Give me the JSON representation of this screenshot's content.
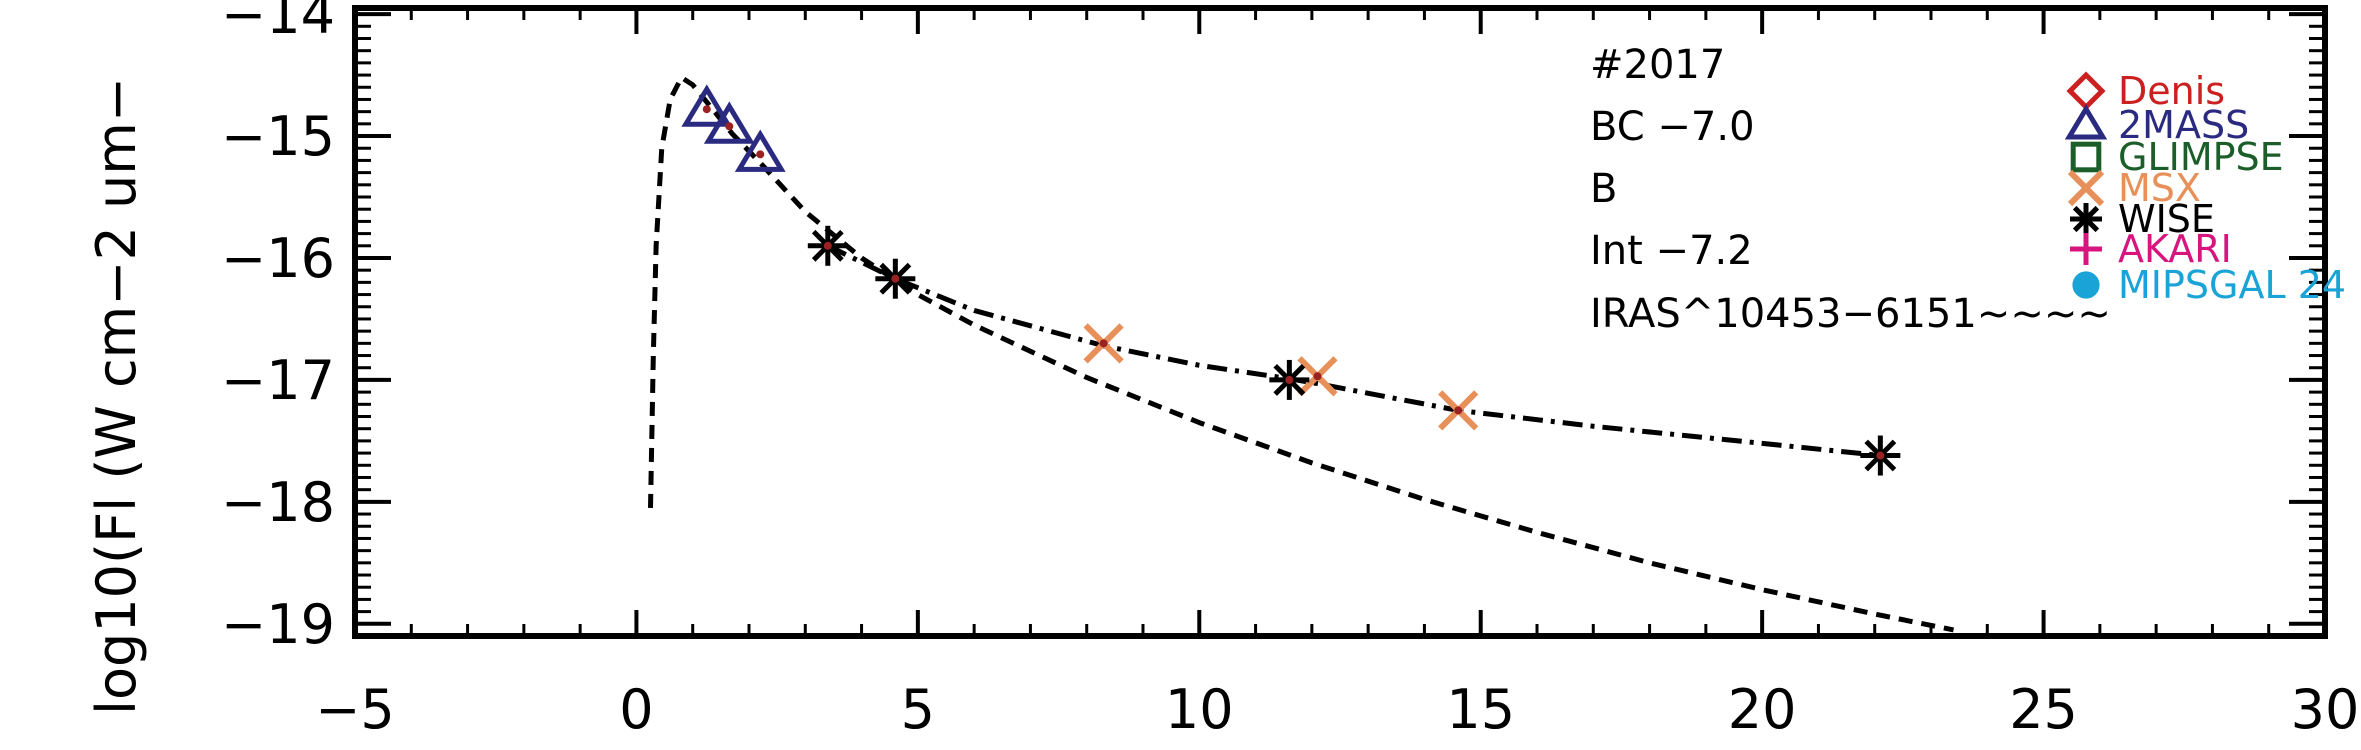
{
  "chart_data": {
    "type": "scatter",
    "title": "",
    "xlabel": "",
    "ylabel": "log10(Fl (W cm−2 um−",
    "xlim": [
      -5,
      30
    ],
    "ylim": [
      -19.1,
      -13.95
    ],
    "x_ticks": [
      -5,
      0,
      5,
      10,
      15,
      20,
      25,
      30
    ],
    "x_tick_labels": [
      "−5",
      "0",
      "5",
      "10",
      "15",
      "20",
      "25",
      "30"
    ],
    "y_ticks": [
      -19,
      -18,
      -17,
      -16,
      -15,
      -14
    ],
    "y_tick_labels": [
      "−19",
      "−18",
      "−17",
      "−16",
      "−15",
      "−14"
    ],
    "grid": false,
    "legend_position": "right",
    "annotations": [
      "#2017",
      "BC −7.0",
      "B",
      "Int −7.2",
      "IRAS^10453−6151~~~~"
    ],
    "colors": {
      "denis": "#cc2020",
      "twomass": "#2a2a80",
      "glimpse": "#1b5e2a",
      "msx": "#e8905a",
      "wise": "#000000",
      "akari": "#d6157f",
      "mipsgal": "#1aa3d6",
      "center_dot": "#9a2222"
    },
    "series": [
      {
        "name": "Denis",
        "marker": "diamond",
        "x": [],
        "y": []
      },
      {
        "name": "2MASS",
        "marker": "triangle",
        "x": [
          1.25,
          1.65,
          2.2
        ],
        "y": [
          -14.78,
          -14.92,
          -15.15
        ]
      },
      {
        "name": "GLIMPSE",
        "marker": "square",
        "x": [],
        "y": []
      },
      {
        "name": "MSX",
        "marker": "x",
        "x": [
          8.3,
          12.1,
          14.6
        ],
        "y": [
          -16.7,
          -16.97,
          -17.25
        ]
      },
      {
        "name": "WISE",
        "marker": "asterisk",
        "x": [
          3.4,
          4.6,
          11.6,
          22.1
        ],
        "y": [
          -15.9,
          -16.17,
          -17.0,
          -17.62
        ]
      },
      {
        "name": "AKARI",
        "marker": "plus",
        "x": [],
        "y": []
      },
      {
        "name": "MIPSGAL 24",
        "marker": "dot",
        "x": [],
        "y": []
      }
    ],
    "curves": [
      {
        "style": "dashed",
        "x": [
          0.25,
          0.3,
          0.35,
          0.45,
          0.6,
          0.8,
          1.0,
          1.3,
          1.7,
          2.2,
          3.0,
          4.0,
          5.0,
          6.0,
          8.0,
          10.0,
          12.0,
          14.0,
          16.0,
          18.0,
          20.0,
          22.0,
          23.4
        ],
        "y": [
          -18.05,
          -16.8,
          -15.9,
          -15.1,
          -14.7,
          -14.52,
          -14.58,
          -14.75,
          -14.98,
          -15.22,
          -15.62,
          -16.0,
          -16.3,
          -16.55,
          -16.98,
          -17.35,
          -17.68,
          -17.98,
          -18.25,
          -18.5,
          -18.72,
          -18.92,
          -19.05
        ]
      },
      {
        "style": "dashdot",
        "x": [
          3.4,
          4.6,
          6.0,
          8.3,
          10.0,
          11.6,
          12.1,
          14.6,
          17.0,
          20.0,
          22.1
        ],
        "y": [
          -15.9,
          -16.17,
          -16.43,
          -16.72,
          -16.88,
          -16.99,
          -17.03,
          -17.25,
          -17.38,
          -17.52,
          -17.62
        ]
      }
    ]
  }
}
